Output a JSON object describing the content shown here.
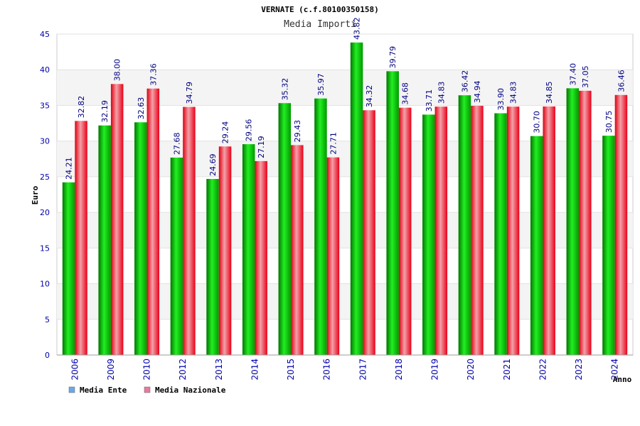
{
  "chart_data": {
    "type": "bar",
    "title": "VERNATE (c.f.80100350158)",
    "subtitle": "Media Importi",
    "xlabel": "Anno",
    "ylabel": "Euro",
    "ylim": [
      0,
      45
    ],
    "yticks": [
      0,
      5,
      10,
      15,
      20,
      25,
      30,
      35,
      40,
      45
    ],
    "categories": [
      "2006",
      "2009",
      "2010",
      "2012",
      "2013",
      "2014",
      "2015",
      "2016",
      "2017",
      "2018",
      "2019",
      "2020",
      "2021",
      "2022",
      "2023",
      "2024"
    ],
    "series": [
      {
        "name": "Media Ente",
        "color": "#00cc00",
        "legend_color": "#6aa8e8",
        "values": [
          24.21,
          32.19,
          32.63,
          27.68,
          24.69,
          29.56,
          35.32,
          35.97,
          43.82,
          39.79,
          33.71,
          36.42,
          33.9,
          30.7,
          37.4,
          30.75
        ]
      },
      {
        "name": "Media Nazionale",
        "color": "#ee2233",
        "legend_color": "#e87aa0",
        "values": [
          32.82,
          38.0,
          37.36,
          34.79,
          29.24,
          27.19,
          29.43,
          27.71,
          34.32,
          34.68,
          34.83,
          34.94,
          34.83,
          34.85,
          37.05,
          36.46
        ]
      }
    ],
    "grid": true,
    "legend_position": "bottom-left",
    "label_color": "#000080",
    "axis_tick_color": "#0000aa"
  }
}
